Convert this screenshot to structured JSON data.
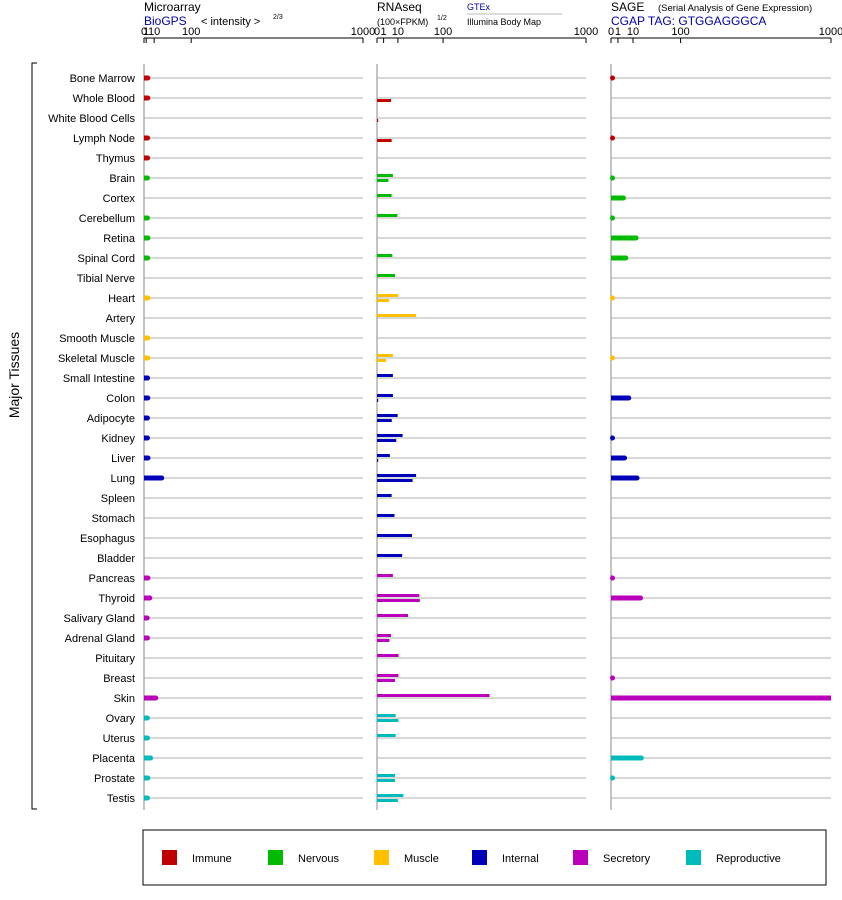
{
  "chart_data": {
    "type": "bar",
    "y_axis_label": "Major Tissues",
    "tick_labels": [
      "0",
      "1",
      "10",
      "100",
      "1000"
    ],
    "tick_values": [
      0,
      1,
      10,
      100,
      1000
    ],
    "panels": [
      {
        "title": "Microarray",
        "subtitle": "BioGPS",
        "scale_note": "< intensity >",
        "scale_exp": "2/3",
        "xlim": [
          0,
          1000
        ]
      },
      {
        "title": "RNAseq",
        "subtitle": "(100×FPKM)",
        "scale_exp": "1/2",
        "source_top": "GTEx",
        "source_bottom": "Illumina Body Map",
        "xlim": [
          0,
          1000
        ]
      },
      {
        "title": "SAGE",
        "title_note": "(Serial Analysis of Gene Expression)",
        "subtitle": "CGAP TAG: GTGGAGGGCA",
        "xlim": [
          0,
          1000
        ]
      }
    ],
    "categories": [
      {
        "key": "immune",
        "label": "Immune",
        "color": "#c00000"
      },
      {
        "key": "nervous",
        "label": "Nervous",
        "color": "#00bb00"
      },
      {
        "key": "muscle",
        "label": "Muscle",
        "color": "#ffc000"
      },
      {
        "key": "internal",
        "label": "Internal",
        "color": "#0000bb"
      },
      {
        "key": "secretory",
        "label": "Secretory",
        "color": "#bb00bb"
      },
      {
        "key": "reproductive",
        "label": "Reproductive",
        "color": "#00bbbb"
      }
    ],
    "tissues": [
      {
        "name": "Bone Marrow",
        "category": "immune",
        "microarray": 2.3,
        "gtex": null,
        "ibm": null,
        "sage": 0.005
      },
      {
        "name": "Whole Blood",
        "category": "immune",
        "microarray": 2.3,
        "gtex": null,
        "ibm": 4.5,
        "sage": null
      },
      {
        "name": "White Blood Cells",
        "category": "immune",
        "microarray": null,
        "gtex": null,
        "ibm": 0.01,
        "sage": null
      },
      {
        "name": "Lymph Node",
        "category": "immune",
        "microarray": 2.1,
        "gtex": null,
        "ibm": 4.9,
        "sage": 0.005
      },
      {
        "name": "Thymus",
        "category": "immune",
        "microarray": 2.1,
        "gtex": null,
        "ibm": null,
        "sage": null
      },
      {
        "name": "Brain",
        "category": "nervous",
        "microarray": 2.0,
        "gtex": 5.8,
        "ibm": 3.0,
        "sage": 0.003
      },
      {
        "name": "Cortex",
        "category": "nervous",
        "microarray": null,
        "gtex": 4.9,
        "ibm": null,
        "sage": 3.2
      },
      {
        "name": "Cerebellum",
        "category": "nervous",
        "microarray": 2.0,
        "gtex": 9.5,
        "ibm": null,
        "sage": 0.003
      },
      {
        "name": "Retina",
        "category": "nervous",
        "microarray": 2.4,
        "gtex": null,
        "ibm": null,
        "sage": 13.0
      },
      {
        "name": "Spinal Cord",
        "category": "nervous",
        "microarray": 2.2,
        "gtex": 5.4,
        "ibm": null,
        "sage": 4.5
      },
      {
        "name": "Tibial Nerve",
        "category": "nervous",
        "microarray": null,
        "gtex": 7.4,
        "ibm": null,
        "sage": null
      },
      {
        "name": "Heart",
        "category": "muscle",
        "microarray": 2.5,
        "gtex": 10.3,
        "ibm": 3.4,
        "sage": 0.002
      },
      {
        "name": "Artery",
        "category": "muscle",
        "microarray": null,
        "gtex": 35.0,
        "ibm": null,
        "sage": null
      },
      {
        "name": "Smooth Muscle",
        "category": "muscle",
        "microarray": 2.3,
        "gtex": null,
        "ibm": null,
        "sage": null
      },
      {
        "name": "Skeletal Muscle",
        "category": "muscle",
        "microarray": 2.4,
        "gtex": 5.8,
        "ibm": 1.9,
        "sage": 0.002
      },
      {
        "name": "Small Intestine",
        "category": "internal",
        "microarray": 2.1,
        "gtex": 5.8,
        "ibm": null,
        "sage": null
      },
      {
        "name": "Colon",
        "category": "internal",
        "microarray": 2.3,
        "gtex": 5.8,
        "ibm": 0.03,
        "sage": 6.5
      },
      {
        "name": "Adipocyte",
        "category": "internal",
        "microarray": 2.0,
        "gtex": 9.8,
        "ibm": 5.0,
        "sage": null
      },
      {
        "name": "Kidney",
        "category": "internal",
        "microarray": 2.0,
        "gtex": 15.0,
        "ibm": 8.5,
        "sage": 0.003
      },
      {
        "name": "Liver",
        "category": "internal",
        "microarray": 2.5,
        "gtex": 3.8,
        "ibm": 0.02,
        "sage": 3.8
      },
      {
        "name": "Lung",
        "category": "internal",
        "microarray": 23.0,
        "gtex": 35.0,
        "ibm": 29.0,
        "sage": 14.0
      },
      {
        "name": "Spleen",
        "category": "internal",
        "microarray": null,
        "gtex": 4.9,
        "ibm": null,
        "sage": null
      },
      {
        "name": "Stomach",
        "category": "internal",
        "microarray": null,
        "gtex": 7.0,
        "ibm": null,
        "sage": null
      },
      {
        "name": "Esophagus",
        "category": "internal",
        "microarray": null,
        "gtex": 28.0,
        "ibm": null,
        "sage": null
      },
      {
        "name": "Bladder",
        "category": "internal",
        "microarray": null,
        "gtex": 14.5,
        "ibm": null,
        "sage": null
      },
      {
        "name": "Pancreas",
        "category": "secretory",
        "microarray": 2.4,
        "gtex": 5.8,
        "ibm": null,
        "sage": 0.003
      },
      {
        "name": "Thyroid",
        "category": "secretory",
        "microarray": 4.3,
        "gtex": 41.0,
        "ibm": 42.0,
        "sage": 18.0
      },
      {
        "name": "Salivary Gland",
        "category": "secretory",
        "microarray": 1.8,
        "gtex": 22.0,
        "ibm": null,
        "sage": null
      },
      {
        "name": "Adrenal Gland",
        "category": "secretory",
        "microarray": 2.0,
        "gtex": 4.5,
        "ibm": 3.5,
        "sage": null
      },
      {
        "name": "Pituitary",
        "category": "secretory",
        "microarray": null,
        "gtex": 10.7,
        "ibm": null,
        "sage": null
      },
      {
        "name": "Breast",
        "category": "secretory",
        "microarray": null,
        "gtex": 10.5,
        "ibm": 7.4,
        "sage": 0.003
      },
      {
        "name": "Skin",
        "category": "secretory",
        "microarray": 12.5,
        "gtex": 290.0,
        "ibm": null,
        "sage": 1000
      },
      {
        "name": "Ovary",
        "category": "reproductive",
        "microarray": 1.9,
        "gtex": 8.0,
        "ibm": 10.5,
        "sage": null
      },
      {
        "name": "Uterus",
        "category": "reproductive",
        "microarray": 2.0,
        "gtex": 8.0,
        "ibm": null,
        "sage": null
      },
      {
        "name": "Placenta",
        "category": "reproductive",
        "microarray": 5.2,
        "gtex": null,
        "ibm": null,
        "sage": 19.0
      },
      {
        "name": "Prostate",
        "category": "reproductive",
        "microarray": 2.3,
        "gtex": 7.4,
        "ibm": 7.4,
        "sage": 0.003
      },
      {
        "name": "Testis",
        "category": "reproductive",
        "microarray": 2.0,
        "gtex": 16.0,
        "ibm": 10.0,
        "sage": null
      }
    ]
  }
}
